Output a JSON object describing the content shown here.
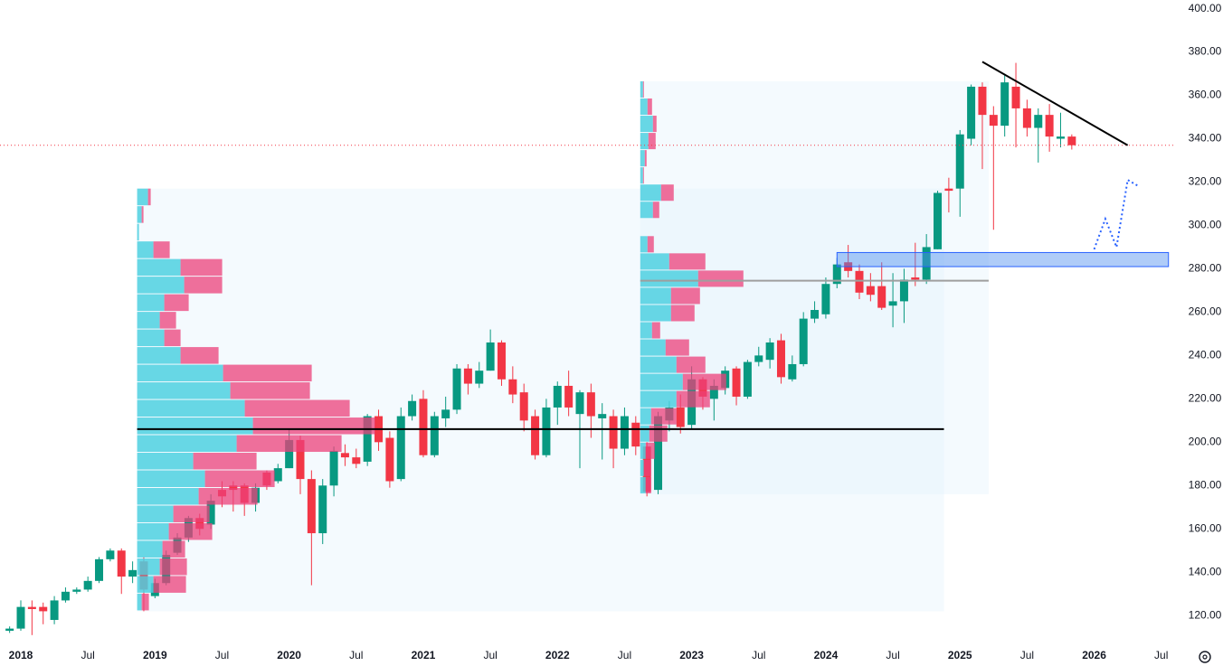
{
  "chart_data": {
    "type": "candlestick",
    "x": [
      "2017-12",
      "2018-01",
      "2018-02",
      "2018-03",
      "2018-04",
      "2018-05",
      "2018-06",
      "2018-07",
      "2018-08",
      "2018-09",
      "2018-10",
      "2018-11",
      "2018-12",
      "2019-01",
      "2019-02",
      "2019-03",
      "2019-04",
      "2019-05",
      "2019-06",
      "2019-07",
      "2019-08",
      "2019-09",
      "2019-10",
      "2019-11",
      "2019-12",
      "2020-01",
      "2020-02",
      "2020-03",
      "2020-04",
      "2020-05",
      "2020-06",
      "2020-07",
      "2020-08",
      "2020-09",
      "2020-10",
      "2020-11",
      "2020-12",
      "2021-01",
      "2021-02",
      "2021-03",
      "2021-04",
      "2021-05",
      "2021-06",
      "2021-07",
      "2021-08",
      "2021-09",
      "2021-10",
      "2021-11",
      "2021-12",
      "2022-01",
      "2022-02",
      "2022-03",
      "2022-04",
      "2022-05",
      "2022-06",
      "2022-07",
      "2022-08",
      "2022-09",
      "2022-10",
      "2022-11",
      "2022-12",
      "2023-01",
      "2023-02",
      "2023-03",
      "2023-04",
      "2023-05",
      "2023-06",
      "2023-07",
      "2023-08",
      "2023-09",
      "2023-10",
      "2023-11",
      "2023-12",
      "2024-01",
      "2024-02",
      "2024-03",
      "2024-04",
      "2024-05",
      "2024-06",
      "2024-07",
      "2024-08",
      "2024-09",
      "2024-10",
      "2024-11",
      "2024-12",
      "2025-01",
      "2025-02",
      "2025-03",
      "2025-04",
      "2025-05",
      "2025-06",
      "2025-07",
      "2025-08",
      "2025-09",
      "2025-10",
      "2025-11"
    ],
    "open": [
      113,
      114,
      124,
      124,
      118,
      127,
      131,
      132,
      136,
      146,
      150,
      138,
      145,
      129,
      135,
      149,
      156,
      165,
      162,
      178,
      180,
      180,
      172,
      186,
      182,
      188,
      201,
      183,
      158,
      180,
      195,
      193,
      191,
      212,
      202,
      183,
      212,
      220,
      194,
      211,
      215,
      234,
      227,
      233,
      246,
      229,
      223,
      212,
      194,
      216,
      226,
      213,
      223,
      211,
      212,
      197,
      209,
      198,
      178,
      210,
      216,
      208,
      229,
      220,
      225,
      234,
      221,
      237,
      238,
      247,
      229,
      236,
      257,
      259,
      273,
      283,
      279,
      272,
      272,
      263,
      265,
      276,
      275,
      289,
      317,
      317,
      340,
      364,
      351,
      346,
      364,
      354,
      345,
      351,
      340,
      341
    ],
    "high": [
      115,
      127,
      127,
      126,
      129,
      133,
      133,
      138,
      147,
      151,
      151,
      145,
      147,
      137,
      150,
      158,
      166,
      167,
      176,
      182,
      182,
      181,
      181,
      187,
      190,
      206,
      203,
      187,
      183,
      198,
      199,
      197,
      213,
      215,
      205,
      216,
      222,
      224,
      214,
      221,
      236,
      236,
      237,
      252,
      247,
      235,
      227,
      215,
      220,
      228,
      233,
      224,
      227,
      218,
      215,
      216,
      212,
      200,
      214,
      219,
      222,
      235,
      230,
      229,
      235,
      235,
      238,
      244,
      248,
      250,
      240,
      260,
      265,
      276,
      285,
      291,
      282,
      278,
      283,
      278,
      280,
      292,
      296,
      316,
      322,
      344,
      365,
      366,
      355,
      370,
      375,
      358,
      354,
      356,
      352,
      342
    ],
    "low": [
      112,
      113,
      111,
      116,
      116,
      126,
      130,
      131,
      135,
      145,
      130,
      135,
      122,
      128,
      134,
      148,
      154,
      157,
      160,
      170,
      168,
      166,
      168,
      178,
      181,
      188,
      176,
      134,
      153,
      175,
      189,
      188,
      189,
      196,
      179,
      182,
      210,
      193,
      193,
      207,
      213,
      222,
      225,
      233,
      226,
      218,
      205,
      192,
      193,
      208,
      212,
      188,
      202,
      192,
      188,
      194,
      194,
      175,
      176,
      205,
      204,
      206,
      215,
      210,
      222,
      217,
      220,
      235,
      234,
      227,
      228,
      235,
      255,
      257,
      271,
      276,
      266,
      265,
      261,
      253,
      255,
      272,
      273,
      289,
      306,
      304,
      337,
      326,
      298,
      341,
      336,
      341,
      329,
      334,
      336,
      335
    ],
    "close": [
      114,
      124,
      123,
      122,
      127,
      131,
      132,
      136,
      146,
      150,
      138,
      141,
      132,
      135,
      148,
      156,
      165,
      160,
      173,
      175,
      178,
      172,
      179,
      180,
      188,
      201,
      183,
      158,
      180,
      196,
      193,
      190,
      212,
      200,
      182,
      212,
      219,
      194,
      212,
      215,
      234,
      227,
      233,
      246,
      229,
      222,
      210,
      194,
      216,
      226,
      216,
      223,
      212,
      213,
      197,
      212,
      198,
      177,
      212,
      216,
      207,
      229,
      221,
      226,
      233,
      221,
      237,
      240,
      246,
      230,
      236,
      257,
      261,
      273,
      282,
      279,
      269,
      268,
      262,
      265,
      275,
      275,
      290,
      315,
      316,
      342,
      364,
      351,
      346,
      366,
      354,
      345,
      351,
      341,
      341,
      337
    ],
    "up_color": "#089981",
    "down_color": "#f23645",
    "ylim": [
      108,
      404
    ],
    "yticks": [
      {
        "value": 120,
        "label": "120.00"
      },
      {
        "value": 140,
        "label": "140.00"
      },
      {
        "value": 160,
        "label": "160.00"
      },
      {
        "value": 180,
        "label": "180.00"
      },
      {
        "value": 200,
        "label": "200.00"
      },
      {
        "value": 220,
        "label": "220.00"
      },
      {
        "value": 240,
        "label": "240.00"
      },
      {
        "value": 260,
        "label": "260.00"
      },
      {
        "value": 280,
        "label": "280.00"
      },
      {
        "value": 300,
        "label": "300.00"
      },
      {
        "value": 320,
        "label": "320.00"
      },
      {
        "value": 340,
        "label": "340.00"
      },
      {
        "value": 360,
        "label": "360.00"
      },
      {
        "value": 380,
        "label": "380.00"
      },
      {
        "value": 400,
        "label": "400.00"
      }
    ],
    "xticks": [
      {
        "value": "2018-01",
        "label": "2018"
      },
      {
        "value": "2018-07",
        "label": "Jul"
      },
      {
        "value": "2019-01",
        "label": "2019"
      },
      {
        "value": "2019-07",
        "label": "Jul"
      },
      {
        "value": "2020-01",
        "label": "2020"
      },
      {
        "value": "2020-07",
        "label": "Jul"
      },
      {
        "value": "2021-01",
        "label": "2021"
      },
      {
        "value": "2021-07",
        "label": "Jul"
      },
      {
        "value": "2022-01",
        "label": "2022"
      },
      {
        "value": "2022-07",
        "label": "Jul"
      },
      {
        "value": "2023-01",
        "label": "2023"
      },
      {
        "value": "2023-07",
        "label": "Jul"
      },
      {
        "value": "2024-01",
        "label": "2024"
      },
      {
        "value": "2024-07",
        "label": "Jul"
      },
      {
        "value": "2025-01",
        "label": "2025"
      },
      {
        "value": "2025-07",
        "label": "Jul"
      },
      {
        "value": "2026-01",
        "label": "2026"
      },
      {
        "value": "2026-07",
        "label": "Jul"
      }
    ],
    "grid": true,
    "volume_profiles": [
      {
        "start": "2018-11",
        "end": "2024-11",
        "price_range": [
          122,
          317
        ],
        "poc": 206,
        "poc_color": "#000000",
        "up": [
          12,
          5,
          2,
          18,
          48,
          52,
          30,
          25,
          30,
          48,
          95,
          103,
          119,
          128,
          110,
          62,
          75,
          68,
          40,
          35,
          28,
          25,
          18,
          5
        ],
        "down": [
          3,
          2,
          0,
          18,
          46,
          42,
          27,
          18,
          18,
          42,
          98,
          88,
          116,
          135,
          116,
          70,
          77,
          65,
          40,
          48,
          25,
          30,
          36,
          8
        ]
      },
      {
        "start": "2022-08",
        "end": "2025-03",
        "price_range": [
          176,
          366.5
        ],
        "poc": 274.5,
        "poc_color": "#9e9e9e",
        "up": [
          3,
          8,
          14,
          9,
          5,
          3,
          23,
          14,
          0,
          8,
          32,
          64,
          34,
          34,
          13,
          28,
          40,
          47,
          40,
          12,
          10,
          6,
          4,
          6
        ],
        "down": [
          1,
          5,
          4,
          8,
          2,
          1,
          14,
          7,
          0,
          7,
          40,
          50,
          32,
          26,
          9,
          26,
          32,
          48,
          37,
          28,
          20,
          10,
          8,
          6
        ]
      }
    ],
    "zone": {
      "range": [
        281,
        287.5
      ],
      "start": "2024-02",
      "end": "2026-07",
      "color": "#4d8ef0"
    },
    "trendline": {
      "x": [
        "2025-03",
        "2026-04"
      ],
      "y": [
        375.5,
        337
      ],
      "color": "#000000"
    },
    "projection": {
      "x": [
        "2026-01",
        "2026-02",
        "2026-03",
        "2026-04",
        "2026-05"
      ],
      "y": [
        289,
        303,
        290,
        321,
        318
      ],
      "color": "#2962ff"
    }
  }
}
